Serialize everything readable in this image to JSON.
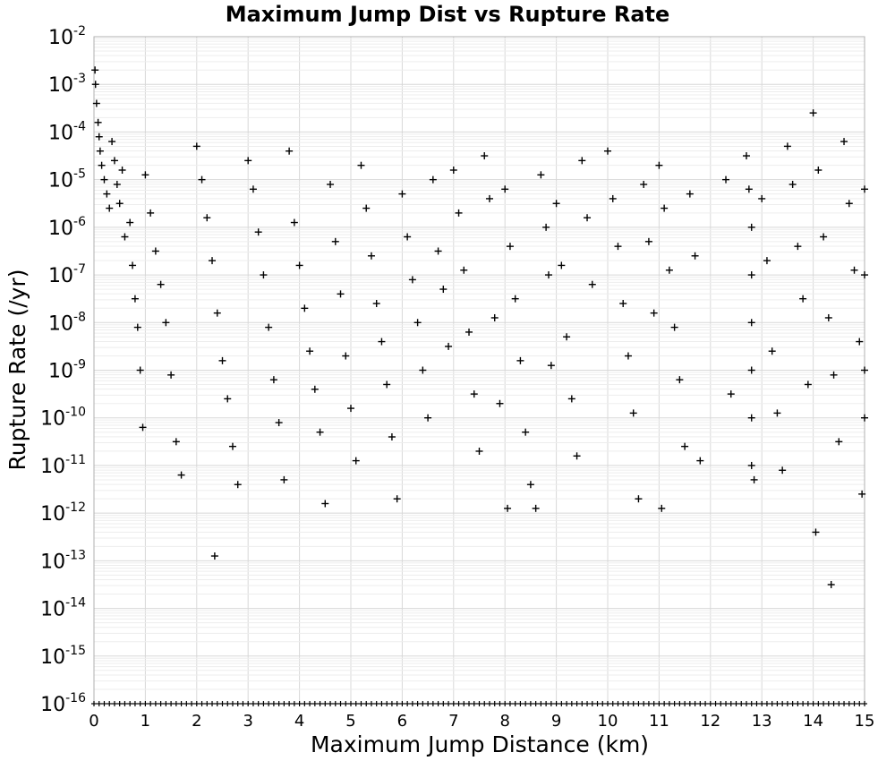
{
  "chart_data": {
    "type": "scatter",
    "title": "Maximum Jump Dist vs Rupture Rate",
    "xlabel": "Maximum Jump Distance (km)",
    "ylabel": "Rupture Rate (/yr)",
    "xlim": [
      0,
      15
    ],
    "ylim_log10": [
      -16,
      -2
    ],
    "y_scale": "log",
    "grid": true,
    "x_ticks": [
      "0",
      "1",
      "2",
      "3",
      "4",
      "5",
      "6",
      "7",
      "8",
      "9",
      "10",
      "11",
      "12",
      "13",
      "14",
      "15"
    ],
    "y_ticks": [
      {
        "base": "10",
        "exp": "-2"
      },
      {
        "base": "10",
        "exp": "-3"
      },
      {
        "base": "10",
        "exp": "-4"
      },
      {
        "base": "10",
        "exp": "-5"
      },
      {
        "base": "10",
        "exp": "-6"
      },
      {
        "base": "10",
        "exp": "-7"
      },
      {
        "base": "10",
        "exp": "-8"
      },
      {
        "base": "10",
        "exp": "-9"
      },
      {
        "base": "10",
        "exp": "-10"
      },
      {
        "base": "10",
        "exp": "-11"
      },
      {
        "base": "10",
        "exp": "-12"
      },
      {
        "base": "10",
        "exp": "-13"
      },
      {
        "base": "10",
        "exp": "-14"
      },
      {
        "base": "10",
        "exp": "-15"
      },
      {
        "base": "10",
        "exp": "-16"
      }
    ],
    "marker": "plus",
    "series": [
      {
        "points_log10": [
          [
            0.02,
            -2.7
          ],
          [
            0.03,
            -3.0
          ],
          [
            0.05,
            -3.4
          ],
          [
            0.08,
            -3.8
          ],
          [
            0.1,
            -4.1
          ],
          [
            0.12,
            -4.4
          ],
          [
            0.15,
            -4.7
          ],
          [
            0.2,
            -5.0
          ],
          [
            0.25,
            -5.3
          ],
          [
            0.3,
            -5.6
          ],
          [
            0.35,
            -4.2
          ],
          [
            0.4,
            -4.6
          ],
          [
            0.45,
            -5.1
          ],
          [
            0.5,
            -5.5
          ],
          [
            0.55,
            -4.8
          ],
          [
            0.6,
            -6.2
          ],
          [
            0.7,
            -5.9
          ],
          [
            0.75,
            -6.8
          ],
          [
            0.8,
            -7.5
          ],
          [
            0.85,
            -8.1
          ],
          [
            0.9,
            -9.0
          ],
          [
            0.95,
            -10.2
          ],
          [
            1.0,
            -4.9
          ],
          [
            1.1,
            -5.7
          ],
          [
            1.2,
            -6.5
          ],
          [
            1.3,
            -7.2
          ],
          [
            1.4,
            -8.0
          ],
          [
            1.5,
            -9.1
          ],
          [
            1.6,
            -10.5
          ],
          [
            1.7,
            -11.2
          ],
          [
            2.0,
            -4.3
          ],
          [
            2.1,
            -5.0
          ],
          [
            2.2,
            -5.8
          ],
          [
            2.3,
            -6.7
          ],
          [
            2.35,
            -12.9
          ],
          [
            2.4,
            -7.8
          ],
          [
            2.5,
            -8.8
          ],
          [
            2.6,
            -9.6
          ],
          [
            2.7,
            -10.6
          ],
          [
            2.8,
            -11.4
          ],
          [
            3.0,
            -4.6
          ],
          [
            3.1,
            -5.2
          ],
          [
            3.2,
            -6.1
          ],
          [
            3.3,
            -7.0
          ],
          [
            3.4,
            -8.1
          ],
          [
            3.5,
            -9.2
          ],
          [
            3.6,
            -10.1
          ],
          [
            3.7,
            -11.3
          ],
          [
            3.8,
            -4.4
          ],
          [
            3.9,
            -5.9
          ],
          [
            4.0,
            -6.8
          ],
          [
            4.1,
            -7.7
          ],
          [
            4.2,
            -8.6
          ],
          [
            4.3,
            -9.4
          ],
          [
            4.4,
            -10.3
          ],
          [
            4.5,
            -11.8
          ],
          [
            4.6,
            -5.1
          ],
          [
            4.7,
            -6.3
          ],
          [
            4.8,
            -7.4
          ],
          [
            4.9,
            -8.7
          ],
          [
            5.0,
            -9.8
          ],
          [
            5.1,
            -10.9
          ],
          [
            5.2,
            -4.7
          ],
          [
            5.3,
            -5.6
          ],
          [
            5.4,
            -6.6
          ],
          [
            5.5,
            -7.6
          ],
          [
            5.6,
            -8.4
          ],
          [
            5.7,
            -9.3
          ],
          [
            5.8,
            -10.4
          ],
          [
            5.9,
            -11.7
          ],
          [
            6.0,
            -5.3
          ],
          [
            6.1,
            -6.2
          ],
          [
            6.2,
            -7.1
          ],
          [
            6.3,
            -8.0
          ],
          [
            6.4,
            -9.0
          ],
          [
            6.5,
            -10.0
          ],
          [
            6.6,
            -5.0
          ],
          [
            6.7,
            -6.5
          ],
          [
            6.8,
            -7.3
          ],
          [
            6.9,
            -8.5
          ],
          [
            7.0,
            -4.8
          ],
          [
            7.1,
            -5.7
          ],
          [
            7.2,
            -6.9
          ],
          [
            7.3,
            -8.2
          ],
          [
            7.4,
            -9.5
          ],
          [
            7.5,
            -10.7
          ],
          [
            7.6,
            -4.5
          ],
          [
            7.7,
            -5.4
          ],
          [
            7.8,
            -7.9
          ],
          [
            7.9,
            -9.7
          ],
          [
            8.0,
            -5.2
          ],
          [
            8.05,
            -11.9
          ],
          [
            8.1,
            -6.4
          ],
          [
            8.2,
            -7.5
          ],
          [
            8.3,
            -8.8
          ],
          [
            8.4,
            -10.3
          ],
          [
            8.5,
            -11.4
          ],
          [
            8.6,
            -11.9
          ],
          [
            8.7,
            -4.9
          ],
          [
            8.8,
            -6.0
          ],
          [
            8.85,
            -7.0
          ],
          [
            8.9,
            -8.9
          ],
          [
            9.0,
            -5.5
          ],
          [
            9.1,
            -6.8
          ],
          [
            9.2,
            -8.3
          ],
          [
            9.3,
            -9.6
          ],
          [
            9.4,
            -10.8
          ],
          [
            9.5,
            -4.6
          ],
          [
            9.6,
            -5.8
          ],
          [
            9.7,
            -7.2
          ],
          [
            10.0,
            -4.4
          ],
          [
            10.1,
            -5.4
          ],
          [
            10.2,
            -6.4
          ],
          [
            10.3,
            -7.6
          ],
          [
            10.4,
            -8.7
          ],
          [
            10.5,
            -9.9
          ],
          [
            10.6,
            -11.7
          ],
          [
            10.7,
            -5.1
          ],
          [
            10.8,
            -6.3
          ],
          [
            10.9,
            -7.8
          ],
          [
            11.0,
            -4.7
          ],
          [
            11.05,
            -11.9
          ],
          [
            11.1,
            -5.6
          ],
          [
            11.2,
            -6.9
          ],
          [
            11.3,
            -8.1
          ],
          [
            11.4,
            -9.2
          ],
          [
            11.5,
            -10.6
          ],
          [
            11.6,
            -5.3
          ],
          [
            11.7,
            -6.6
          ],
          [
            11.8,
            -10.9
          ],
          [
            12.3,
            -5.0
          ],
          [
            12.4,
            -9.5
          ],
          [
            12.7,
            -4.5
          ],
          [
            12.75,
            -5.2
          ],
          [
            12.8,
            -6.0
          ],
          [
            12.8,
            -7.0
          ],
          [
            12.8,
            -8.0
          ],
          [
            12.8,
            -9.0
          ],
          [
            12.8,
            -10.0
          ],
          [
            12.8,
            -11.0
          ],
          [
            12.85,
            -11.3
          ],
          [
            13.0,
            -5.4
          ],
          [
            13.1,
            -6.7
          ],
          [
            13.2,
            -8.6
          ],
          [
            13.3,
            -9.9
          ],
          [
            13.4,
            -11.1
          ],
          [
            13.5,
            -4.3
          ],
          [
            13.6,
            -5.1
          ],
          [
            13.7,
            -6.4
          ],
          [
            13.8,
            -7.5
          ],
          [
            13.9,
            -9.3
          ],
          [
            14.0,
            -3.6
          ],
          [
            14.05,
            -12.4
          ],
          [
            14.1,
            -4.8
          ],
          [
            14.2,
            -6.2
          ],
          [
            14.3,
            -7.9
          ],
          [
            14.35,
            -13.5
          ],
          [
            14.4,
            -9.1
          ],
          [
            14.5,
            -10.5
          ],
          [
            14.6,
            -4.2
          ],
          [
            14.7,
            -5.5
          ],
          [
            14.8,
            -6.9
          ],
          [
            14.9,
            -8.4
          ],
          [
            14.95,
            -11.6
          ],
          [
            15.0,
            -5.2
          ],
          [
            15.0,
            -7.0
          ],
          [
            15.0,
            -9.0
          ],
          [
            15.0,
            -10.0
          ]
        ]
      },
      {
        "floor_points_x": [
          0.0,
          0.1,
          0.2,
          0.3,
          0.4,
          0.5,
          0.6,
          0.7,
          0.8,
          0.9,
          1.0,
          1.1,
          1.2,
          1.3,
          1.4,
          1.5,
          1.6,
          1.7,
          1.8,
          1.9,
          2.0,
          2.1,
          2.2,
          2.3,
          2.4,
          2.5,
          2.6,
          2.7,
          2.8,
          2.9,
          3.0,
          3.1,
          3.2,
          3.3,
          3.4,
          3.5,
          3.6,
          3.7,
          3.8,
          3.9,
          4.0,
          4.1,
          4.2,
          4.3,
          4.4,
          4.5,
          4.6,
          4.7,
          4.8,
          4.9,
          5.0,
          5.1,
          5.2,
          5.3,
          5.4,
          5.5,
          5.6,
          5.7,
          5.8,
          5.9,
          6.0,
          6.1,
          6.2,
          6.3,
          6.4,
          6.5,
          6.6,
          6.7,
          6.8,
          6.9,
          7.0,
          7.1,
          7.2,
          7.3,
          7.4,
          7.5,
          7.6,
          7.7,
          7.8,
          7.9,
          8.0,
          8.1,
          8.2,
          8.3,
          8.4,
          8.5,
          8.6,
          8.7,
          8.8,
          8.9,
          9.0,
          9.1,
          9.2,
          9.3,
          9.4,
          9.5,
          9.6,
          9.7,
          9.8,
          9.9,
          10.0,
          10.1,
          10.2,
          10.3,
          10.4,
          10.5,
          10.6,
          10.7,
          10.8,
          10.9,
          11.0,
          11.1,
          11.2,
          11.3,
          11.4,
          11.5,
          11.6,
          11.7,
          11.8,
          11.9,
          12.0,
          12.1,
          12.2,
          12.3,
          12.4,
          12.5,
          12.6,
          12.7,
          12.8,
          12.9,
          13.0,
          13.1,
          13.2,
          13.3,
          13.4,
          13.5,
          13.6,
          13.7,
          13.8,
          13.9,
          14.0,
          14.1,
          14.2,
          14.3,
          14.4,
          14.5,
          14.6,
          14.7,
          14.8,
          14.9,
          15.0
        ],
        "floor_log10": -16
      }
    ]
  }
}
